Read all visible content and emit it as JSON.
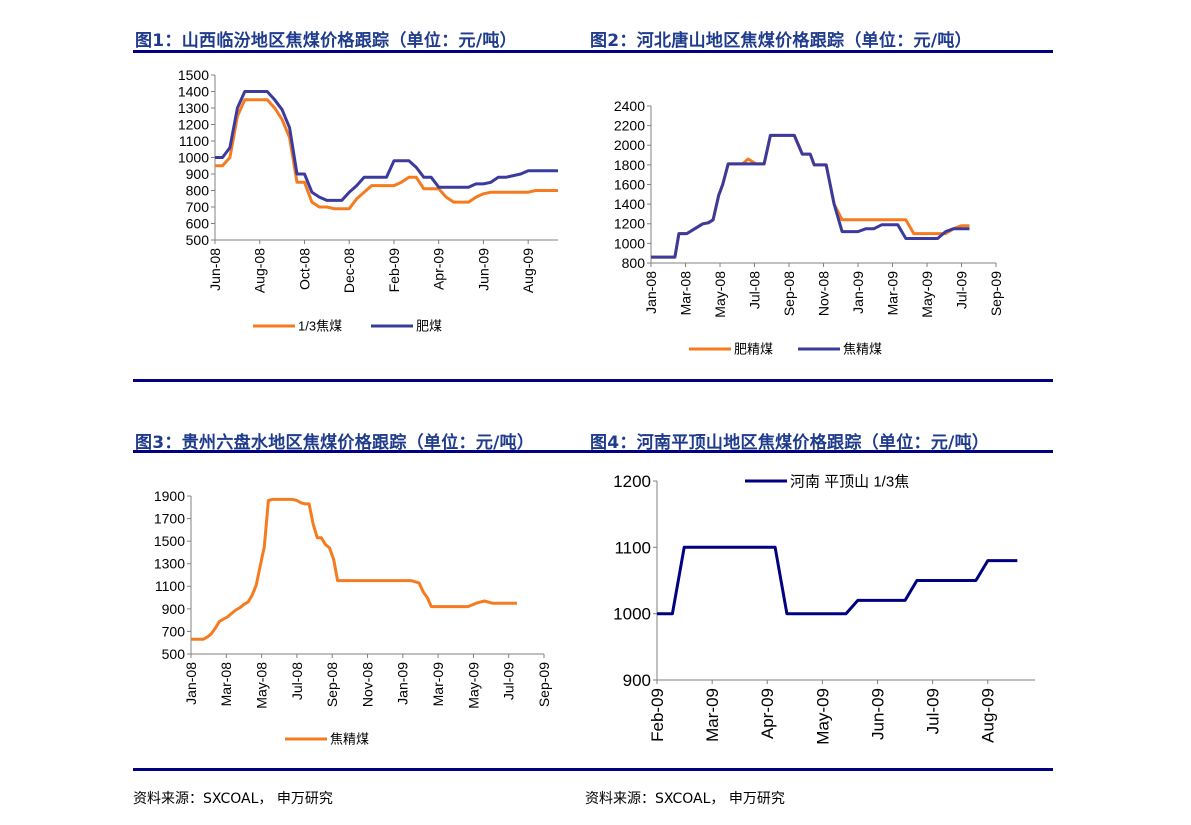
{
  "titles": {
    "fig1": "图1：山西临汾地区焦煤价格跟踪（单位：元/吨）",
    "fig2": "图2：河北唐山地区焦煤价格跟踪（单位：元/吨）",
    "fig3": "图3：贵州六盘水地区焦煤价格跟踪（单位：元/吨）",
    "fig4": "图4：河南平顶山地区焦煤价格跟踪（单位：元/吨）"
  },
  "source": {
    "left": "资料来源：SXCOAL， 申万研究",
    "right": "资料来源：SXCOAL， 申万研究"
  },
  "colors": {
    "orange": "#F57B20",
    "navy": "#3B3B9E",
    "dark_navy": "#000080",
    "title_blue": "#1F3B8C"
  },
  "chart_data": [
    {
      "id": "fig1",
      "type": "line",
      "ylim": [
        500,
        1500
      ],
      "yticks": [
        500,
        600,
        700,
        800,
        900,
        1000,
        1100,
        1200,
        1300,
        1400,
        1500
      ],
      "xlim": [
        0,
        46
      ],
      "x_tick_positions": [
        0,
        6,
        12,
        18,
        24,
        30,
        36,
        42
      ],
      "x_tick_labels": [
        "Jun-08",
        "Aug-08",
        "Oct-08",
        "Dec-08",
        "Feb-09",
        "Apr-09",
        "Jun-09",
        "Aug-09"
      ],
      "series": [
        {
          "name": "1/3焦煤",
          "color": "orange",
          "x": [
            0,
            1,
            2,
            3,
            4,
            5,
            6,
            7,
            8,
            9,
            10,
            11,
            12,
            13,
            14,
            15,
            16,
            17,
            18,
            19,
            20,
            21,
            22,
            23,
            24,
            25,
            26,
            27,
            28,
            29,
            30,
            31,
            32,
            33,
            34,
            35,
            36,
            37,
            38,
            39,
            40,
            41,
            42,
            43,
            44,
            45,
            46
          ],
          "y": [
            950,
            950,
            1000,
            1250,
            1350,
            1350,
            1350,
            1350,
            1300,
            1230,
            1120,
            850,
            850,
            730,
            700,
            700,
            690,
            690,
            690,
            750,
            790,
            830,
            830,
            830,
            830,
            850,
            880,
            880,
            810,
            810,
            810,
            760,
            730,
            730,
            730,
            760,
            780,
            790,
            790,
            790,
            790,
            790,
            790,
            800,
            800,
            800,
            800
          ]
        },
        {
          "name": "肥煤",
          "color": "navy",
          "x": [
            0,
            1,
            2,
            3,
            4,
            5,
            6,
            7,
            8,
            9,
            10,
            11,
            12,
            13,
            14,
            15,
            16,
            17,
            18,
            19,
            20,
            21,
            22,
            23,
            24,
            25,
            26,
            27,
            28,
            29,
            30,
            31,
            32,
            33,
            34,
            35,
            36,
            37,
            38,
            39,
            40,
            41,
            42,
            43,
            44,
            45,
            46
          ],
          "y": [
            1000,
            1000,
            1060,
            1300,
            1400,
            1400,
            1400,
            1400,
            1350,
            1290,
            1180,
            900,
            900,
            790,
            760,
            740,
            740,
            740,
            790,
            830,
            880,
            880,
            880,
            880,
            980,
            980,
            980,
            940,
            880,
            880,
            820,
            820,
            820,
            820,
            820,
            840,
            840,
            850,
            880,
            880,
            890,
            900,
            920,
            920,
            920,
            920,
            920
          ]
        }
      ]
    },
    {
      "id": "fig2",
      "type": "line",
      "ylim": [
        800,
        2400
      ],
      "yticks": [
        800,
        1000,
        1200,
        1400,
        1600,
        1800,
        2000,
        2200,
        2400
      ],
      "xlim": [
        0,
        40
      ],
      "x_tick_positions": [
        0,
        4.33,
        8.67,
        13,
        17.33,
        21.67,
        26,
        30.33,
        34.67,
        39,
        43.33
      ],
      "x_tick_labels": [
        "Jan-08",
        "Mar-08",
        "May-08",
        "Jul-08",
        "Sep-08",
        "Nov-08",
        "Jan-09",
        "Mar-09",
        "May-09",
        "Jul-09",
        "Sep-09"
      ],
      "series": [
        {
          "name": "肥精煤",
          "color": "orange",
          "x": [
            0,
            3,
            3.5,
            4.5,
            5.5,
            6.5,
            7.2,
            7.8,
            8.5,
            9,
            9.7,
            10.5,
            11.5,
            12.2,
            13.2,
            13.5,
            14.2,
            15,
            16,
            17,
            18,
            19,
            19.5,
            20,
            20.5,
            21,
            22,
            23,
            24,
            25,
            26,
            27,
            28,
            29,
            30,
            31,
            32,
            33,
            34,
            35,
            36,
            37,
            38,
            39,
            40
          ],
          "y": [
            860,
            860,
            1100,
            1100,
            1150,
            1200,
            1210,
            1240,
            1490,
            1600,
            1810,
            1810,
            1810,
            1860,
            1810,
            1810,
            1810,
            2100,
            2100,
            2100,
            2100,
            1910,
            1910,
            1910,
            1800,
            1800,
            1800,
            1400,
            1240,
            1240,
            1240,
            1240,
            1240,
            1240,
            1240,
            1240,
            1240,
            1100,
            1100,
            1100,
            1100,
            1100,
            1150,
            1180,
            1180
          ]
        },
        {
          "name": "焦精煤",
          "color": "navy",
          "x": [
            0,
            3,
            3.5,
            4.5,
            5.5,
            6.5,
            7.2,
            7.8,
            8.5,
            9,
            9.7,
            10.5,
            11.5,
            12.2,
            13.2,
            13.5,
            14.2,
            15,
            16,
            17,
            18,
            19,
            19.5,
            20,
            20.5,
            21,
            22,
            23,
            24,
            25,
            26,
            27,
            28,
            29,
            30,
            31,
            32,
            33,
            34,
            35,
            36,
            37,
            38,
            39,
            40
          ],
          "y": [
            860,
            860,
            1100,
            1100,
            1150,
            1200,
            1210,
            1240,
            1490,
            1600,
            1810,
            1810,
            1810,
            1810,
            1810,
            1810,
            1810,
            2100,
            2100,
            2100,
            2100,
            1910,
            1910,
            1910,
            1800,
            1800,
            1800,
            1400,
            1120,
            1120,
            1120,
            1150,
            1150,
            1190,
            1190,
            1190,
            1050,
            1050,
            1050,
            1050,
            1050,
            1120,
            1150,
            1150,
            1150
          ]
        }
      ]
    },
    {
      "id": "fig3",
      "type": "line",
      "ylim": [
        500,
        1900
      ],
      "yticks": [
        500,
        700,
        900,
        1100,
        1300,
        1500,
        1700,
        1900
      ],
      "xlim": [
        0,
        40
      ],
      "x_tick_positions": [
        0,
        4.33,
        8.67,
        13,
        17.33,
        21.67,
        26,
        30.33,
        34.67,
        39,
        43.33
      ],
      "x_tick_labels": [
        "Jan-08",
        "Mar-08",
        "May-08",
        "Jul-08",
        "Sep-08",
        "Nov-08",
        "Jan-09",
        "Mar-09",
        "May-09",
        "Jul-09",
        "Sep-09"
      ],
      "series": [
        {
          "name": "焦精煤",
          "color": "orange",
          "x": [
            0,
            1.5,
            2,
            2.5,
            3,
            3.5,
            4,
            4.5,
            5,
            5.5,
            6,
            6.5,
            7,
            7.5,
            8,
            8.5,
            9,
            9.5,
            10,
            10.5,
            11,
            11.5,
            12,
            12.5,
            13,
            13.5,
            14,
            14.5,
            15,
            15.5,
            16,
            16.5,
            17,
            17.5,
            18,
            18.5,
            19,
            19.5,
            20,
            20.5,
            21,
            21.5,
            22,
            23,
            24,
            25,
            26,
            27,
            28,
            28.5,
            29,
            29.5,
            30,
            31,
            32,
            33,
            34,
            35,
            36,
            37,
            38,
            38.5,
            39,
            39.5,
            40
          ],
          "y": [
            630,
            630,
            650,
            680,
            730,
            790,
            810,
            830,
            860,
            890,
            910,
            940,
            960,
            1020,
            1110,
            1280,
            1450,
            1860,
            1870,
            1870,
            1870,
            1870,
            1870,
            1870,
            1860,
            1840,
            1830,
            1830,
            1650,
            1530,
            1530,
            1470,
            1440,
            1340,
            1150,
            1150,
            1150,
            1150,
            1150,
            1150,
            1150,
            1150,
            1150,
            1150,
            1150,
            1150,
            1150,
            1150,
            1130,
            1050,
            1000,
            920,
            920,
            920,
            920,
            920,
            920,
            950,
            970,
            950,
            950,
            950,
            950,
            950,
            950
          ]
        }
      ]
    },
    {
      "id": "fig4",
      "type": "line",
      "ylim": [
        900,
        1200
      ],
      "yticks": [
        900,
        1000,
        1100,
        1200
      ],
      "xlim": [
        0,
        32
      ],
      "x_tick_positions": [
        0,
        4.67,
        9.33,
        14,
        18.67,
        23.33,
        28
      ],
      "x_tick_labels": [
        "Feb-09",
        "Mar-09",
        "Apr-09",
        "May-09",
        "Jun-09",
        "Jul-09",
        "Aug-09"
      ],
      "legend_label": "河南 平顶山 1/3焦",
      "series": [
        {
          "name": "河南 平顶山 1/3焦",
          "color": "dark_navy",
          "x": [
            0,
            1.3,
            2.3,
            10,
            11,
            16,
            17,
            21,
            22,
            27,
            28,
            30.5
          ],
          "y": [
            1000,
            1000,
            1100,
            1100,
            1000,
            1000,
            1020,
            1020,
            1050,
            1050,
            1080,
            1080
          ]
        }
      ]
    }
  ]
}
